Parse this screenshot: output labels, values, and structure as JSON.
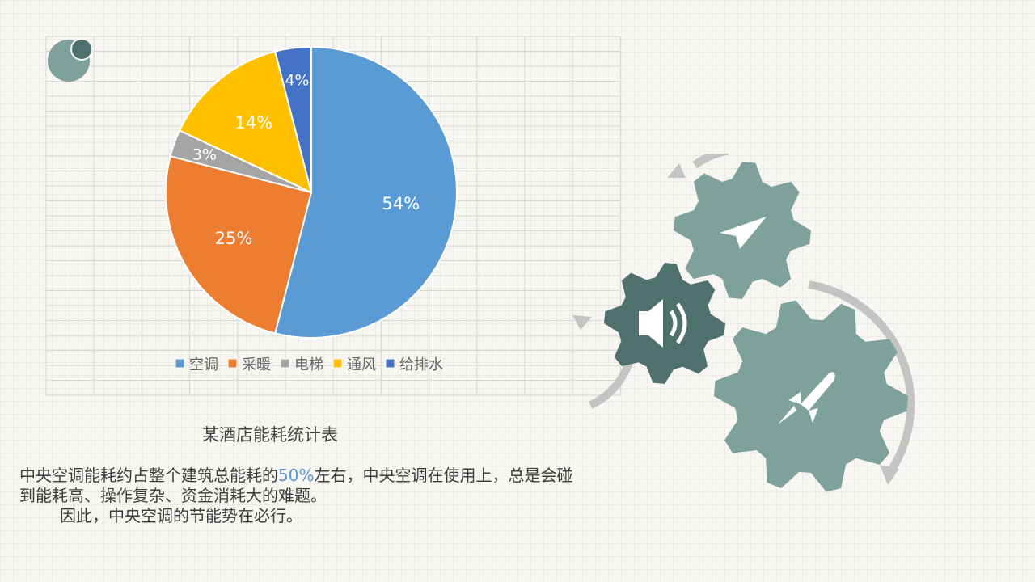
{
  "chart_data": {
    "type": "pie",
    "categories": [
      "空调",
      "采暖",
      "电梯",
      "通风",
      "给排水"
    ],
    "values": [
      54,
      25,
      3,
      14,
      4
    ],
    "labels": [
      "54%",
      "25%",
      "3%",
      "14%",
      "4%"
    ],
    "colors": [
      "#5b9bd5",
      "#ed7d31",
      "#a5a5a5",
      "#ffc000",
      "#4472c4"
    ],
    "legend": "bottom",
    "start": "top, clockwise"
  },
  "caption": "某酒店能耗统计表",
  "body": {
    "line1_pre": "中央空调能耗约占整个建筑总能耗的",
    "line1_hl": "50%",
    "line1_post": "左右，中央空调在使用上，总是会碰",
    "line2": "到能耗高、操作复杂、资金消耗大的难题。",
    "line3": "因此，中央空调的节能势在必行。"
  },
  "colors": {
    "gear_light": "#7fa19b",
    "gear_dark": "#4f716d",
    "arrow": "#c4c4c4",
    "highlight": "#5b9bd5"
  },
  "icons": [
    "paper-plane-icon",
    "speaker-icon",
    "rocket-icon"
  ]
}
